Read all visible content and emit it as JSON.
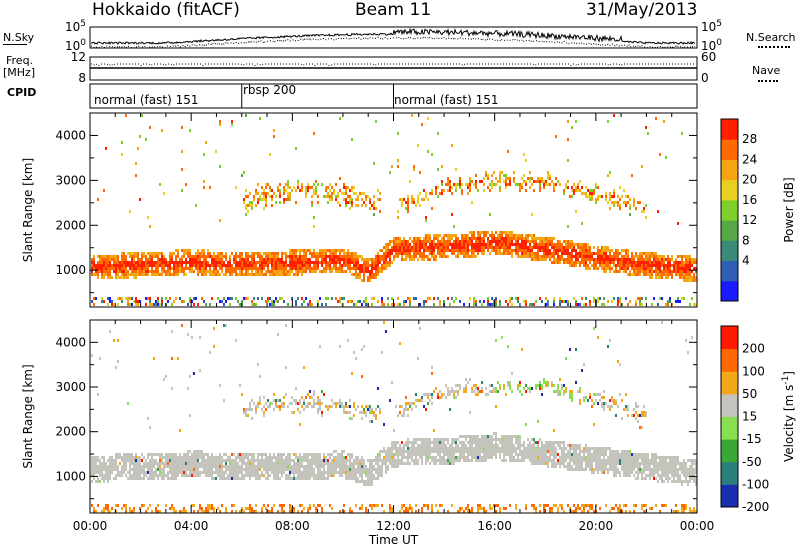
{
  "header": {
    "title": "Hokkaido (fitACF)",
    "beam": "Beam 11",
    "date": "31/May/2013"
  },
  "top_labels": {
    "nsky": "N.Sky",
    "nsearch": "N.Search",
    "freq": "Freq.",
    "freq_unit": "[MHz]",
    "nave": "Nave",
    "cpid": "CPID"
  },
  "noise_axis": {
    "left_ticks": [
      "10^5",
      "10^0"
    ],
    "right_ticks": [
      "10^5",
      "10^0"
    ]
  },
  "freq_axis": {
    "left_ticks": [
      "12",
      "8"
    ],
    "right_ticks": [
      "60",
      "0"
    ]
  },
  "cpid_segments": [
    {
      "label": "normal (fast) 151",
      "start_hour": 0,
      "end_hour": 6
    },
    {
      "label": "rbsp 200",
      "start_hour": 6,
      "end_hour": 12
    },
    {
      "label": "normal (fast) 151",
      "start_hour": 12,
      "end_hour": 24
    }
  ],
  "chart_data": [
    {
      "type": "heatmap",
      "name": "power",
      "ylabel": "Slant Range [km]",
      "xlim": [
        0,
        24
      ],
      "ylim": [
        180,
        4500
      ],
      "yticks": [
        1000,
        2000,
        3000,
        4000
      ],
      "colorbar": {
        "label": "Power [dB]",
        "ticks": [
          "28",
          "24",
          "20",
          "16",
          "12",
          "8",
          "4"
        ],
        "range": [
          0,
          32
        ],
        "colors": [
          "#1a1aff",
          "#2e5fb5",
          "#3a8a7a",
          "#55a845",
          "#7fcf2a",
          "#e8d020",
          "#f5a512",
          "#ff6a00",
          "#ff2000"
        ]
      },
      "echo_bands": [
        {
          "type": "strong",
          "hours": [
            0,
            2,
            4,
            6,
            8,
            10,
            11,
            12,
            14,
            16,
            18,
            20,
            22,
            24
          ],
          "range_km": [
            1100,
            1150,
            1220,
            1150,
            1200,
            1250,
            1000,
            1500,
            1550,
            1650,
            1500,
            1300,
            1150,
            1050
          ],
          "width_km": 550
        },
        {
          "type": "scatter",
          "hours": [
            6,
            8,
            10,
            11.5
          ],
          "range_km": [
            2600,
            2800,
            2700,
            2500
          ],
          "width_km": 700
        },
        {
          "type": "scatter",
          "hours": [
            12,
            14,
            16,
            18,
            20,
            22
          ],
          "range_km": [
            2400,
            2900,
            3000,
            3000,
            2700,
            2400
          ],
          "width_km": 500
        }
      ]
    },
    {
      "type": "heatmap",
      "name": "velocity",
      "ylabel": "Slant Range [km]",
      "xlabel": "Time UT",
      "xlim": [
        0,
        24
      ],
      "ylim": [
        180,
        4500
      ],
      "yticks": [
        1000,
        2000,
        3000,
        4000
      ],
      "xticks": [
        "00:00",
        "04:00",
        "08:00",
        "12:00",
        "16:00",
        "20:00",
        "00:00"
      ],
      "colorbar": {
        "label": "Velocity [m s^-1]",
        "ticks": [
          "200",
          "100",
          "50",
          "15",
          "-15",
          "-50",
          "-100",
          "-200"
        ],
        "colors": [
          "#1a2fb0",
          "#2a7f7a",
          "#38a838",
          "#88e050",
          "#c4c4bc",
          "#f4a818",
          "#ff6800",
          "#ff1a00"
        ]
      },
      "echo_bands": [
        {
          "type": "ground",
          "hours": [
            0,
            2,
            4,
            6,
            8,
            10,
            11,
            12,
            14,
            16,
            18,
            20,
            22,
            24
          ],
          "range_km": [
            1200,
            1250,
            1300,
            1250,
            1250,
            1300,
            1100,
            1550,
            1600,
            1700,
            1550,
            1400,
            1250,
            1100
          ],
          "width_km": 600
        },
        {
          "type": "mixed",
          "hours": [
            6,
            8,
            10,
            11.5
          ],
          "range_km": [
            2500,
            2700,
            2600,
            2400
          ],
          "width_km": 600
        },
        {
          "type": "mixed",
          "hours": [
            12,
            14,
            16,
            18,
            20,
            22
          ],
          "range_km": [
            2500,
            2900,
            3000,
            3050,
            2700,
            2400
          ],
          "width_km": 450
        }
      ]
    }
  ]
}
